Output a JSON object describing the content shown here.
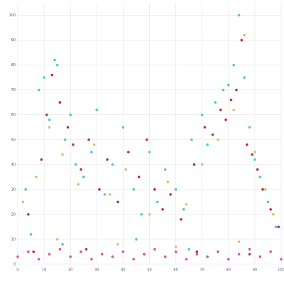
{
  "chart_data": {
    "type": "scatter",
    "xlim": [
      0,
      100
    ],
    "ylim": [
      0,
      105
    ],
    "xticks": [
      0,
      10,
      20,
      30,
      40,
      50,
      60,
      70,
      80,
      90,
      100
    ],
    "yticks": [
      0,
      10,
      20,
      30,
      40,
      50,
      60,
      70,
      80,
      90,
      100
    ],
    "grid": true,
    "series": [
      {
        "color": "#4cc9d6",
        "x": [
          3,
          8,
          10,
          12,
          14,
          15,
          18,
          20,
          22,
          25,
          28,
          30,
          33,
          36,
          40,
          44,
          47,
          50,
          53,
          56,
          60,
          63,
          66,
          70,
          72,
          75,
          78,
          80,
          82,
          84,
          86,
          88,
          90,
          92,
          95,
          98,
          5,
          17,
          45,
          65
        ],
        "values": [
          30,
          70,
          75,
          58,
          82,
          80,
          50,
          60,
          40,
          35,
          45,
          62,
          28,
          40,
          55,
          30,
          20,
          45,
          25,
          38,
          30,
          22,
          50,
          60,
          48,
          65,
          70,
          72,
          80,
          100,
          75,
          55,
          42,
          35,
          25,
          15,
          12,
          8,
          10,
          6
        ]
      },
      {
        "color": "#b5333f",
        "x": [
          4,
          9,
          11,
          13,
          16,
          19,
          21,
          24,
          27,
          31,
          34,
          38,
          42,
          46,
          49,
          52,
          55,
          58,
          62,
          67,
          71,
          74,
          77,
          79,
          81,
          83,
          85,
          87,
          89,
          91,
          93,
          96,
          99,
          6,
          26,
          48,
          68,
          88
        ],
        "values": [
          20,
          42,
          60,
          76,
          65,
          55,
          48,
          38,
          50,
          30,
          42,
          25,
          45,
          35,
          50,
          30,
          22,
          28,
          18,
          40,
          55,
          52,
          62,
          58,
          66,
          70,
          90,
          48,
          44,
          38,
          30,
          22,
          15,
          5,
          6,
          4,
          5,
          4
        ]
      },
      {
        "color": "#c8c86a",
        "x": [
          2,
          7,
          12,
          17,
          23,
          29,
          35,
          41,
          50,
          57,
          64,
          70,
          76,
          82,
          86,
          90,
          94,
          97,
          15,
          38,
          60,
          84
        ],
        "values": [
          25,
          35,
          55,
          44,
          32,
          48,
          28,
          38,
          20,
          33,
          24,
          40,
          50,
          62,
          92,
          45,
          30,
          20,
          10,
          8,
          7,
          9
        ]
      },
      {
        "color": "#e0529c",
        "x": [
          0,
          4,
          8,
          12,
          16,
          20,
          24,
          28,
          32,
          36,
          40,
          44,
          48,
          52,
          56,
          60,
          64,
          68,
          72,
          76,
          80,
          84,
          88,
          92,
          96,
          100
        ],
        "values": [
          3,
          5,
          2,
          4,
          6,
          3,
          5,
          2,
          4,
          3,
          5,
          2,
          4,
          6,
          3,
          5,
          2,
          4,
          3,
          5,
          2,
          4,
          6,
          3,
          5,
          2
        ]
      }
    ]
  }
}
